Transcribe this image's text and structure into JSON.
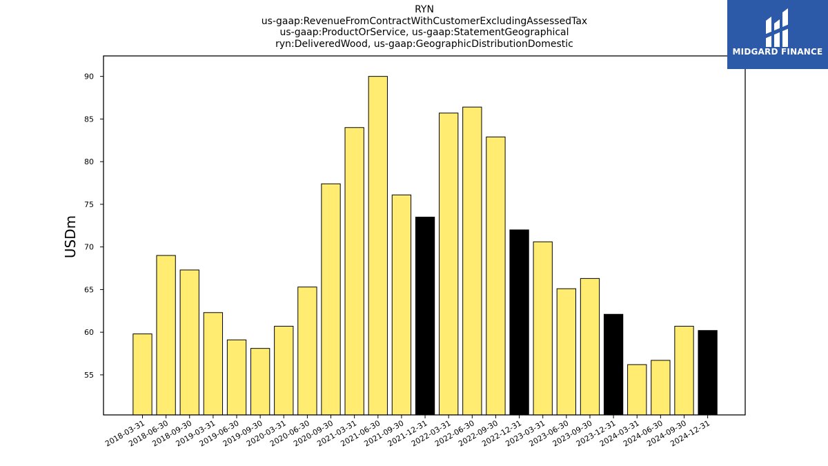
{
  "header": {
    "lines": [
      "RYN",
      "us-gaap:RevenueFromContractWithCustomerExcludingAssessedTax",
      "us-gaap:ProductOrService, us-gaap:StatementGeographical",
      "ryn:DeliveredWood, us-gaap:GeographicDistributionDomestic"
    ]
  },
  "logo": {
    "text": "MIDGARD FINANCE",
    "icon": "midgard-logo-icon",
    "background": "#2d5aa8"
  },
  "chart_data": {
    "type": "bar",
    "title": "RYN",
    "subtitle": [
      "us-gaap:RevenueFromContractWithCustomerExcludingAssessedTax",
      "us-gaap:ProductOrService, us-gaap:StatementGeographical",
      "ryn:DeliveredWood, us-gaap:GeographicDistributionDomestic"
    ],
    "xlabel": "",
    "ylabel": "USDm",
    "ylim": [
      50.3,
      92.4
    ],
    "yticks": [
      55,
      60,
      65,
      70,
      75,
      80,
      85,
      90
    ],
    "grid": false,
    "colors": {
      "quarter": "#ffec70",
      "year_end": "#000000",
      "edge": "#000000"
    },
    "categories": [
      "2018-03-31",
      "2018-06-30",
      "2018-09-30",
      "2019-03-31",
      "2019-06-30",
      "2019-09-30",
      "2020-03-31",
      "2020-06-30",
      "2020-09-30",
      "2021-03-31",
      "2021-06-30",
      "2021-09-30",
      "2021-12-31",
      "2022-03-31",
      "2022-06-30",
      "2022-09-30",
      "2022-12-31",
      "2023-03-31",
      "2023-06-30",
      "2023-09-30",
      "2023-12-31",
      "2024-03-31",
      "2024-06-30",
      "2024-09-30",
      "2024-12-31"
    ],
    "values": [
      59.8,
      69.0,
      67.3,
      62.3,
      59.1,
      58.1,
      60.7,
      65.3,
      77.4,
      84.0,
      90.0,
      76.1,
      73.5,
      85.7,
      86.4,
      82.9,
      72.0,
      70.6,
      65.1,
      66.3,
      62.1,
      56.2,
      56.7,
      60.7,
      60.2
    ],
    "year_end": [
      false,
      false,
      false,
      false,
      false,
      false,
      false,
      false,
      false,
      false,
      false,
      false,
      true,
      false,
      false,
      false,
      true,
      false,
      false,
      false,
      true,
      false,
      false,
      false,
      true
    ]
  }
}
